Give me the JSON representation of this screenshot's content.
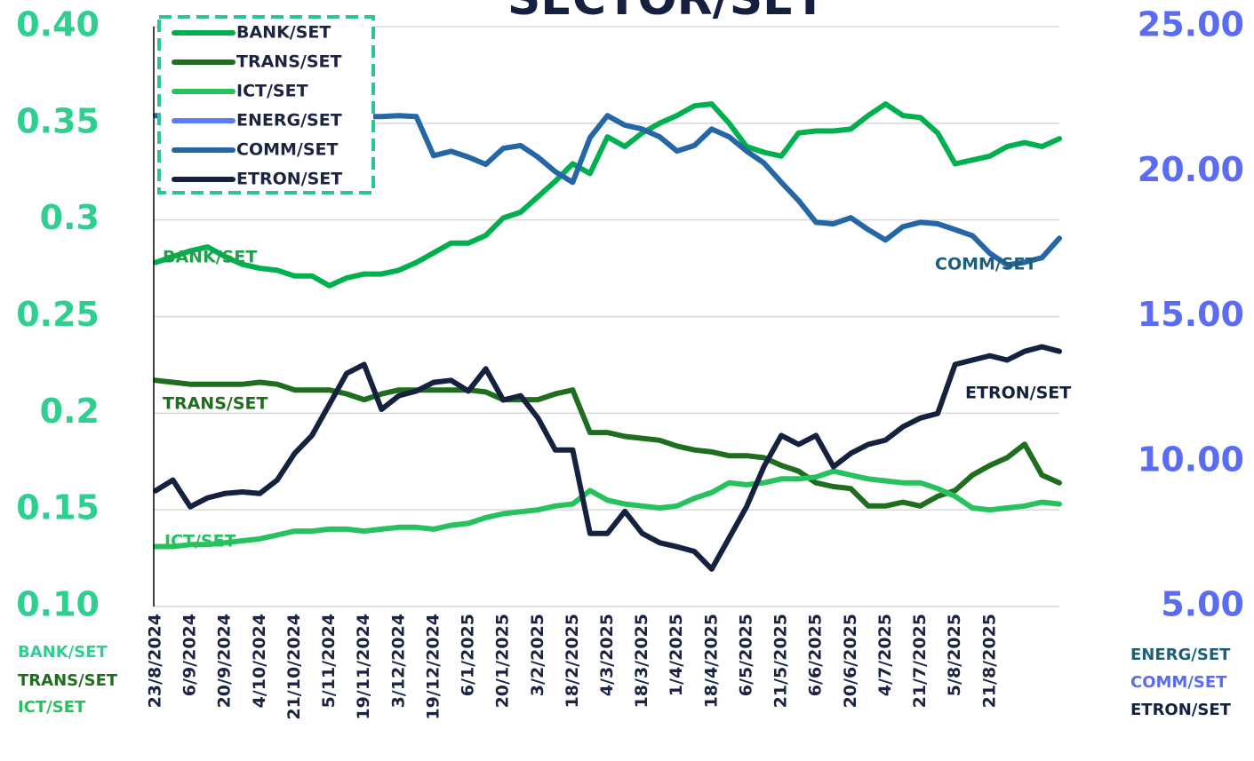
{
  "chart_data": {
    "type": "line",
    "title": "SECTOR/SET",
    "categories": [
      "23/8/2024",
      null,
      "6/9/2024",
      null,
      "20/9/2024",
      null,
      "4/10/2024",
      null,
      "21/10/2024",
      null,
      "5/11/2024",
      null,
      "19/11/2024",
      null,
      "3/12/2024",
      null,
      "19/12/2024",
      null,
      "6/1/2025",
      null,
      "20/1/2025",
      null,
      "3/2/2025",
      null,
      "18/2/2025",
      null,
      "4/3/2025",
      null,
      "18/3/2025",
      null,
      "1/4/2025",
      null,
      "18/4/2025",
      null,
      "6/5/2025",
      null,
      "21/5/2025",
      null,
      "6/6/2025",
      null,
      "20/6/2025",
      null,
      "4/7/2025",
      null,
      "21/7/2025",
      null,
      "5/8/2025",
      null,
      "21/8/2025",
      null,
      null,
      null,
      null
    ],
    "series": [
      {
        "name": "BANK/SET",
        "color": "#00b04f",
        "axis": "y",
        "values": [
          0.278,
          0.281,
          0.284,
          0.286,
          0.281,
          0.277,
          0.275,
          0.274,
          0.271,
          0.271,
          0.266,
          0.27,
          0.272,
          0.272,
          0.274,
          0.278,
          0.283,
          0.288,
          0.288,
          0.292,
          0.301,
          0.304,
          0.312,
          0.32,
          0.329,
          0.324,
          0.343,
          0.338,
          0.345,
          0.35,
          0.354,
          0.359,
          0.36,
          0.35,
          0.338,
          0.335,
          0.333,
          0.345,
          0.346,
          0.346,
          0.347,
          0.354,
          0.36,
          0.354,
          0.353,
          0.345,
          0.329,
          0.331,
          0.333,
          0.338,
          0.34,
          0.338,
          0.342
        ]
      },
      {
        "name": "TRANS/SET",
        "color": "#1f6e1f",
        "axis": "y",
        "values": [
          0.217,
          0.216,
          0.215,
          0.215,
          0.215,
          0.215,
          0.216,
          0.215,
          0.212,
          0.212,
          0.212,
          0.21,
          0.207,
          0.21,
          0.212,
          0.212,
          0.212,
          0.212,
          0.212,
          0.211,
          0.207,
          0.207,
          0.207,
          0.21,
          0.212,
          0.19,
          0.19,
          0.188,
          0.187,
          0.186,
          0.183,
          0.181,
          0.18,
          0.178,
          0.178,
          0.177,
          0.173,
          0.17,
          0.164,
          0.162,
          0.161,
          0.152,
          0.152,
          0.154,
          0.152,
          0.157,
          0.16,
          0.168,
          0.173,
          0.177,
          0.184,
          0.168,
          0.164
        ]
      },
      {
        "name": "ICT/SET",
        "color": "#27c25e",
        "axis": "y",
        "values": [
          0.131,
          0.131,
          0.132,
          0.132,
          0.133,
          0.134,
          0.135,
          0.137,
          0.139,
          0.139,
          0.14,
          0.14,
          0.139,
          0.14,
          0.141,
          0.141,
          0.14,
          0.142,
          0.143,
          0.146,
          0.148,
          0.149,
          0.15,
          0.152,
          0.153,
          0.16,
          0.155,
          0.153,
          0.152,
          0.151,
          0.152,
          0.156,
          0.159,
          0.164,
          0.163,
          0.164,
          0.166,
          0.166,
          0.167,
          0.17,
          0.168,
          0.166,
          0.165,
          0.164,
          0.164,
          0.161,
          0.157,
          0.151,
          0.15,
          0.151,
          0.152,
          0.154,
          0.153
        ]
      },
      {
        "name": "ENERG/SET",
        "color": "#5b7cf2",
        "axis": "y2",
        "values": [
          null,
          null,
          null,
          null,
          null,
          null,
          null,
          null,
          null,
          null,
          null,
          null,
          null,
          null,
          null,
          null,
          null,
          null,
          null,
          null,
          null,
          null,
          null,
          null,
          null,
          null,
          null,
          null,
          null,
          null,
          null,
          null,
          null,
          null,
          null,
          null,
          null,
          null,
          null,
          null,
          null,
          null,
          null,
          null,
          null,
          null,
          null,
          null,
          null,
          null,
          null,
          null,
          null
        ]
      },
      {
        "name": "COMM/SET",
        "color": "#2466a6",
        "axis": "y2",
        "values": [
          21.93,
          21.9,
          21.8,
          21.9,
          21.8,
          21.9,
          21.9,
          21.8,
          21.9,
          21.9,
          21.8,
          21.9,
          21.9,
          21.9,
          21.93,
          21.9,
          20.55,
          20.7,
          20.5,
          20.25,
          20.8,
          20.9,
          20.5,
          20.0,
          19.63,
          21.17,
          21.93,
          21.6,
          21.47,
          21.2,
          20.71,
          20.9,
          21.47,
          21.2,
          20.71,
          20.3,
          19.63,
          19.0,
          18.25,
          18.2,
          18.41,
          18.0,
          17.64,
          18.1,
          18.25,
          18.2,
          18.0,
          17.79,
          17.18,
          16.78,
          16.87,
          17.03,
          17.7
        ]
      },
      {
        "name": "ETRON/SET",
        "color": "#15223f",
        "axis": "y2",
        "values": [
          8.99,
          9.36,
          8.44,
          8.75,
          8.9,
          8.95,
          8.9,
          9.36,
          10.28,
          10.9,
          11.97,
          13.04,
          13.35,
          11.8,
          12.27,
          12.43,
          12.73,
          12.8,
          12.43,
          13.2,
          12.12,
          12.27,
          11.5,
          10.4,
          10.4,
          7.52,
          7.52,
          8.28,
          7.52,
          7.2,
          7.06,
          6.9,
          6.29,
          7.36,
          8.44,
          9.82,
          10.9,
          10.59,
          10.9,
          9.82,
          10.28,
          10.59,
          10.74,
          11.2,
          11.5,
          11.66,
          13.35,
          13.5,
          13.65,
          13.5,
          13.8,
          13.96,
          13.8
        ]
      }
    ],
    "ylim": [
      0.1,
      0.4
    ],
    "yticks": [
      {
        "value": 0.1,
        "label": "0.10"
      },
      0.15,
      0.2,
      0.25,
      0.3,
      0.35,
      {
        "value": 0.4,
        "label": "0.40"
      }
    ],
    "y2lim": [
      5,
      25
    ],
    "y2ticks": [
      {
        "value": 5,
        "label": "5.00"
      },
      {
        "value": 10,
        "label": "10.00"
      },
      {
        "value": 15,
        "label": "15.00"
      },
      {
        "value": 20,
        "label": "20.00"
      },
      {
        "value": 25,
        "label": "25.00"
      }
    ],
    "grid": true,
    "legend": "upper left",
    "annotations": [
      {
        "text": "BANK/SET",
        "color": "#1fa04a"
      },
      {
        "text": "TRANS/SET",
        "color": "#1f6e1f"
      },
      {
        "text": "ICT/SET",
        "color": "#27c25e"
      },
      {
        "text": "COMM/SET",
        "color": "#1d5f78"
      },
      {
        "text": "ETRON/SET",
        "color": "#15223f"
      }
    ]
  }
}
